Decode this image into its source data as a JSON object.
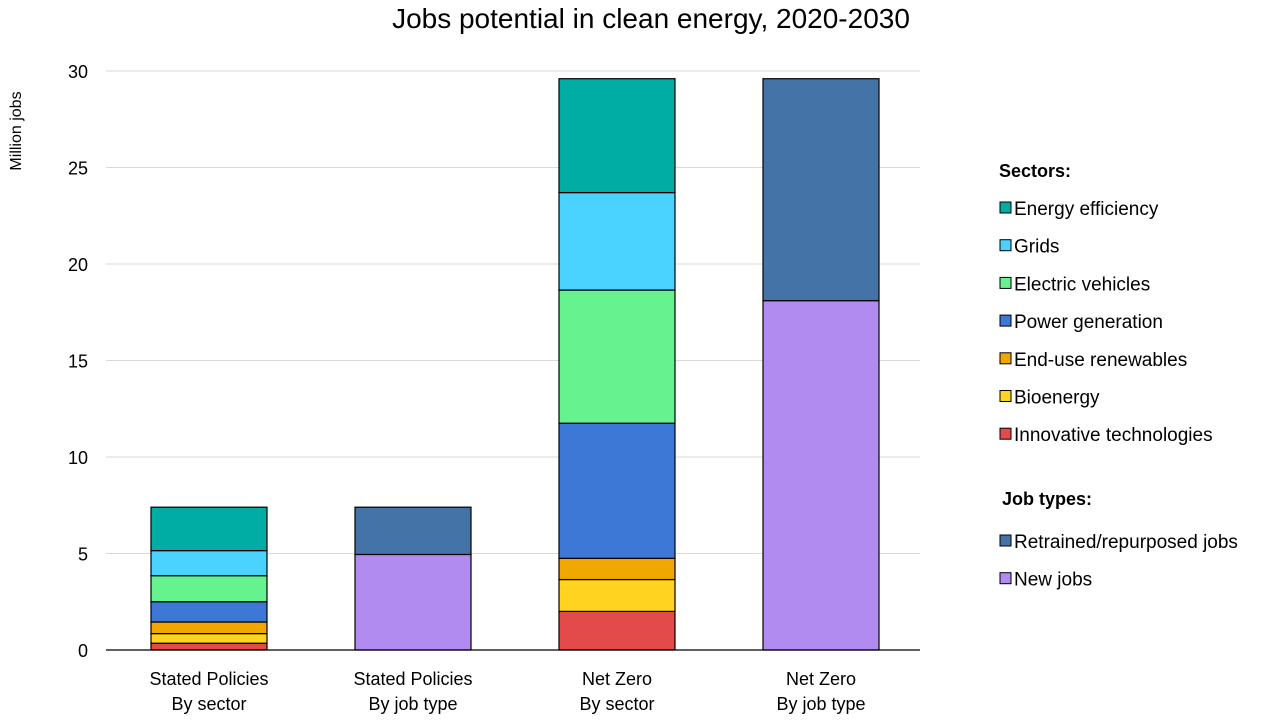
{
  "chart_data": {
    "type": "bar",
    "stacked": true,
    "title": "Jobs potential in clean energy, 2020-2030",
    "ylabel": "Million jobs",
    "ylim": [
      0,
      30
    ],
    "yticks": [
      0,
      5,
      10,
      15,
      20,
      25,
      30
    ],
    "grid": true,
    "legend_position": "right",
    "categories": [
      [
        "Stated Policies",
        "By sector"
      ],
      [
        "Stated Policies",
        "By job type"
      ],
      [
        "Net Zero",
        "By sector"
      ],
      [
        "Net Zero",
        "By job type"
      ]
    ],
    "legend_groups": [
      {
        "title": "Sectors:",
        "series": [
          "Energy efficiency",
          "Grids",
          "Electric vehicles",
          "Power generation",
          "End-use renewables",
          "Bioenergy",
          "Innovative technologies"
        ]
      },
      {
        "title": "Job types:",
        "series": [
          "Retrained/repurposed jobs",
          "New jobs"
        ]
      }
    ],
    "series": [
      {
        "name": "Innovative technologies",
        "color": "#e34a4a",
        "values": [
          0.35,
          0,
          2.0,
          0
        ]
      },
      {
        "name": "Bioenergy",
        "color": "#ffd320",
        "values": [
          0.5,
          0,
          1.65,
          0
        ]
      },
      {
        "name": "End-use renewables",
        "color": "#f0a800",
        "values": [
          0.6,
          0,
          1.1,
          0
        ]
      },
      {
        "name": "Power generation",
        "color": "#3d78d6",
        "values": [
          1.05,
          0,
          7.0,
          0
        ]
      },
      {
        "name": "Electric vehicles",
        "color": "#66f28f",
        "values": [
          1.35,
          0,
          6.9,
          0
        ]
      },
      {
        "name": "Grids",
        "color": "#4ad3ff",
        "values": [
          1.3,
          0,
          5.05,
          0
        ]
      },
      {
        "name": "Energy efficiency",
        "color": "#00ada4",
        "values": [
          2.25,
          0,
          5.9,
          0
        ]
      },
      {
        "name": "New jobs",
        "color": "#b28bf0",
        "values": [
          0,
          4.95,
          0,
          18.1
        ]
      },
      {
        "name": "Retrained/repurposed jobs",
        "color": "#4473a7",
        "values": [
          0,
          2.45,
          0,
          11.5
        ]
      }
    ]
  }
}
